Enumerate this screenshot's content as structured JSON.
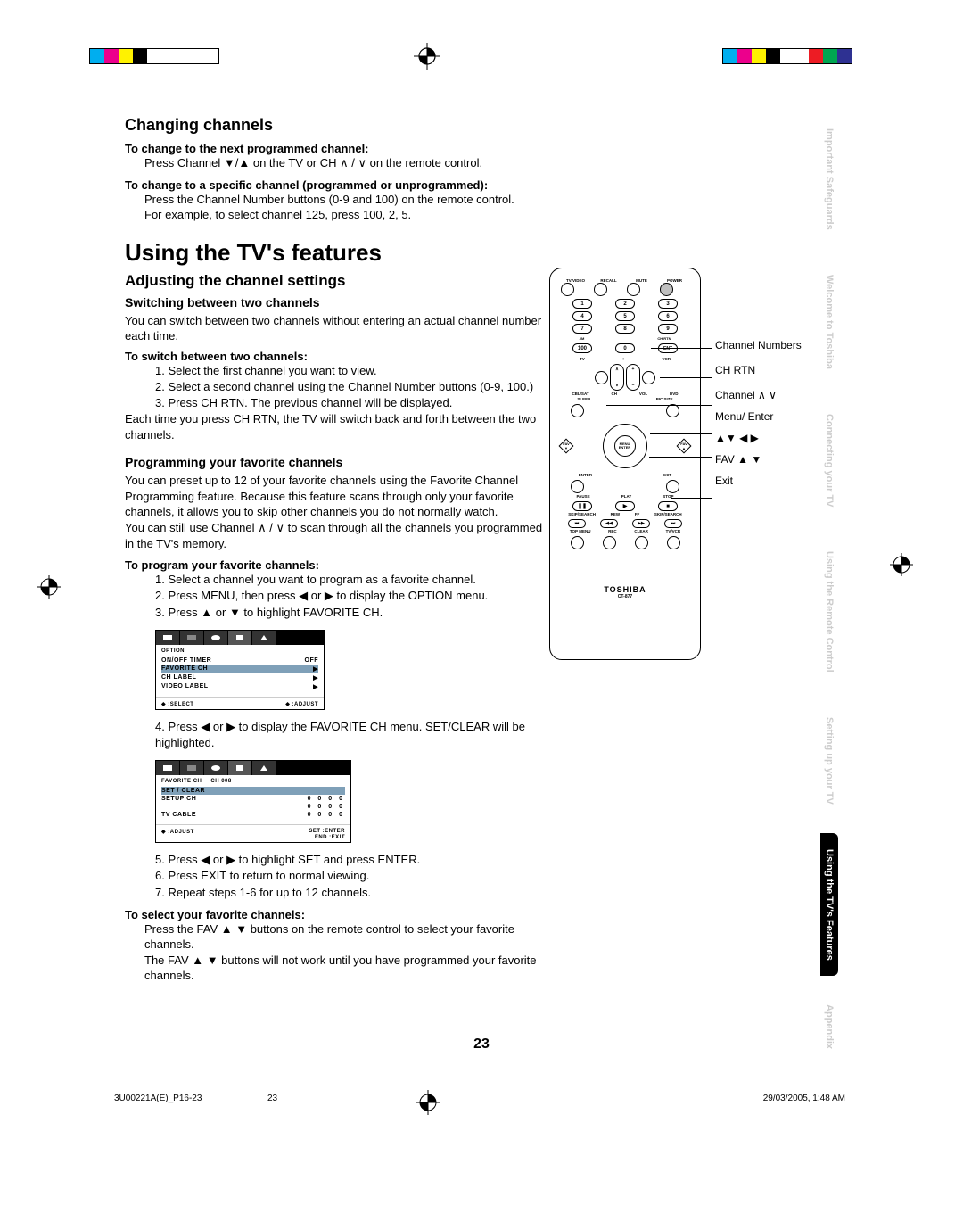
{
  "registration_colors_left": [
    "#00aeef",
    "#ec008c",
    "#fff200",
    "#000000",
    "#ffffff",
    "#ffffff",
    "#ffffff",
    "#ffffff",
    "#ffffff"
  ],
  "registration_colors_right": [
    "#00aeef",
    "#ec008c",
    "#fff200",
    "#000000",
    "#ffffff",
    "#ffffff",
    "#ed1c24",
    "#00a651",
    "#2e3192"
  ],
  "section1_title": "Changing channels",
  "s1_lead1": "To change to the next programmed channel:",
  "s1_body1": "Press Channel ▼/▲ on the TV or CH ∧ / ∨ on the remote control.",
  "s1_lead2": "To change to a specific channel (programmed or unprogrammed):",
  "s1_body2a": "Press the Channel Number buttons (0-9 and 100) on the remote control.",
  "s1_body2b": "For example, to select channel 125, press 100, 2, 5.",
  "main_title": "Using the TV's features",
  "sub_title": "Adjusting the channel settings",
  "s2_h4": "Switching between two channels",
  "s2_p1": "You can switch between two channels without entering an actual channel number each time.",
  "s2_lead": "To switch between two channels:",
  "s2_li1": "1. Select the first channel you want to view.",
  "s2_li2": "2. Select a second channel using the Channel Number buttons (0-9, 100.)",
  "s2_li3": "3. Press CH RTN. The previous channel will be displayed.",
  "s2_p2": "Each time you press CH RTN, the TV will switch back and forth between the two channels.",
  "s3_h4": "Programming your favorite channels",
  "s3_p1": "You can preset up to 12 of your favorite channels using the Favorite Channel Programming feature. Because this feature scans through only your favorite channels, it allows you to skip other channels you do not normally watch.",
  "s3_p2": "You can still use Channel ∧ / ∨ to scan through all the channels you programmed in the TV's memory.",
  "s3_lead1": "To program your favorite channels:",
  "s3_li1": "1. Select a channel you want to program as a favorite channel.",
  "s3_li2": "2. Press MENU, then press ◀ or ▶ to display the OPTION menu.",
  "s3_li3": "3. Press ▲ or ▼ to highlight FAVORITE CH.",
  "s3_li4": "4. Press ◀ or ▶ to display the FAVORITE CH menu. SET/CLEAR will be highlighted.",
  "s3_li5": "5. Press ◀ or ▶ to highlight SET and press ENTER.",
  "s3_li6": "6. Press EXIT to return to normal viewing.",
  "s3_li7": "7. Repeat steps 1-6 for up to 12 channels.",
  "s3_lead2": "To select your favorite channels:",
  "s3_p3": "Press the FAV ▲ ▼ buttons on the remote control to select your favorite channels.",
  "s3_p4": "The FAV ▲ ▼ buttons will not work until you have programmed your favorite channels.",
  "osd1": {
    "title": "OPTION",
    "rows": [
      {
        "l": "ON/OFF TIMER",
        "r": "OFF"
      },
      {
        "l": "FAVORITE CH",
        "r": "▶",
        "hl": true
      },
      {
        "l": "CH LABEL",
        "r": "▶"
      },
      {
        "l": "VIDEO LABEL",
        "r": "▶"
      }
    ],
    "footL": "◆ :SELECT",
    "footR": "◆ :ADJUST"
  },
  "osd2": {
    "title_l": "FAVORITE CH",
    "title_r": "CH 008",
    "rows": [
      {
        "l": "SET / CLEAR",
        "r": "",
        "hl": true
      },
      {
        "l": "SETUP CH",
        "r": "0   0   0   0"
      },
      {
        "l": "",
        "r": "0   0   0   0"
      },
      {
        "l": "TV CABLE",
        "r": "0   0   0   0"
      }
    ],
    "footL": "◆ :ADJUST",
    "footR1": "SET :ENTER",
    "footR2": "END :EXIT"
  },
  "remote_labels": {
    "l1": "Channel Numbers",
    "l2": "CH RTN",
    "l3": "Channel ∧ ∨",
    "l4": "Menu/ Enter",
    "l5": "▲▼ ◀ ▶",
    "l6": "FAV ▲ ▼",
    "l7": "Exit"
  },
  "remote": {
    "top_labels": [
      "TV/VIDEO",
      "RECALL",
      "MUTE",
      "POWER"
    ],
    "nums": [
      "1",
      "2",
      "3",
      "4",
      "5",
      "6",
      "7",
      "8",
      "9",
      "100",
      "0",
      "ENT"
    ],
    "row_small": [
      "-/M",
      "",
      "",
      "CH RTN"
    ],
    "mid": [
      "TV",
      "",
      "",
      "VCR"
    ],
    "mid2": [
      "CBL/SAT",
      "CH",
      "VOL",
      "DVD"
    ],
    "sleep": "SLEEP",
    "picsize": "PIC SIZE",
    "fav_l": "FAV ▼",
    "fav_r": "FAV ▲",
    "hub_top": "MENU",
    "hub_bot": "ENTER",
    "enter": "ENTER",
    "exit": "EXIT",
    "play_row": [
      "PAUSE",
      "PLAY",
      "STOP"
    ],
    "play_icons": [
      "❚❚",
      "▶",
      "■"
    ],
    "skip_row": [
      "SKIP/SEARCH",
      "REW",
      "FF",
      "SKIP/SEARCH"
    ],
    "skip_icons": [
      "⏮",
      "◀◀",
      "▶▶",
      "⏭"
    ],
    "bot_row": [
      "TOP MENU",
      "REC",
      "CLEAR",
      "TV/VCR"
    ],
    "brand": "TOSHIBA",
    "model": "CT-877"
  },
  "side_tabs": [
    {
      "t": "Important Safeguards",
      "active": false
    },
    {
      "t": "Welcome to Toshiba",
      "active": false
    },
    {
      "t": "Connecting your TV",
      "active": false
    },
    {
      "t": "Using the Remote Control",
      "active": false
    },
    {
      "t": "Setting up your TV",
      "active": false
    },
    {
      "t": "Using the TV's Features",
      "active": true
    },
    {
      "t": "Appendix",
      "active": false
    }
  ],
  "page_number": "23",
  "footer_left": "3U00221A(E)_P16-23",
  "footer_mid": "23",
  "footer_right": "29/03/2005, 1:48 AM"
}
